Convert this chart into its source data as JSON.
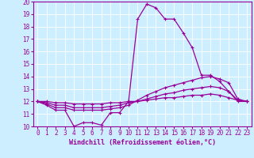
{
  "background_color": "#cceeff",
  "grid_color": "#aaddcc",
  "line_color": "#990099",
  "xlabel": "Windchill (Refroidissement éolien,°C)",
  "ylim": [
    10,
    20
  ],
  "xlim": [
    -0.5,
    23.5
  ],
  "yticks": [
    10,
    11,
    12,
    13,
    14,
    15,
    16,
    17,
    18,
    19,
    20
  ],
  "xticks": [
    0,
    1,
    2,
    3,
    4,
    5,
    6,
    7,
    8,
    9,
    10,
    11,
    12,
    13,
    14,
    15,
    16,
    17,
    18,
    19,
    20,
    21,
    22,
    23
  ],
  "series1_x": [
    0,
    1,
    2,
    3,
    4,
    5,
    6,
    7,
    8,
    9,
    10,
    11,
    12,
    13,
    14,
    15,
    16,
    17,
    18,
    19,
    20,
    21,
    22,
    23
  ],
  "series1_y": [
    12,
    11.7,
    11.3,
    11.3,
    10.0,
    10.3,
    10.3,
    10.1,
    11.1,
    11.1,
    12.0,
    18.6,
    19.8,
    19.5,
    18.6,
    18.6,
    17.5,
    16.3,
    14.1,
    14.1,
    13.6,
    12.8,
    12.0,
    12.0
  ],
  "series2_x": [
    0,
    1,
    2,
    3,
    4,
    5,
    6,
    7,
    8,
    9,
    10,
    11,
    12,
    13,
    14,
    15,
    16,
    17,
    18,
    19,
    20,
    21,
    22,
    23
  ],
  "series2_y": [
    12,
    11.8,
    11.5,
    11.5,
    11.3,
    11.3,
    11.3,
    11.3,
    11.4,
    11.5,
    11.7,
    12.1,
    12.5,
    12.8,
    13.1,
    13.3,
    13.5,
    13.7,
    13.9,
    14.0,
    13.8,
    13.5,
    12.2,
    12.0
  ],
  "series3_x": [
    0,
    1,
    2,
    3,
    4,
    5,
    6,
    7,
    8,
    9,
    10,
    11,
    12,
    13,
    14,
    15,
    16,
    17,
    18,
    19,
    20,
    21,
    22,
    23
  ],
  "series3_y": [
    12,
    11.9,
    11.7,
    11.7,
    11.5,
    11.5,
    11.5,
    11.5,
    11.6,
    11.7,
    11.9,
    12.0,
    12.2,
    12.4,
    12.6,
    12.7,
    12.9,
    13.0,
    13.1,
    13.2,
    13.1,
    12.8,
    12.1,
    12.0
  ],
  "series4_x": [
    0,
    1,
    2,
    3,
    4,
    5,
    6,
    7,
    8,
    9,
    10,
    11,
    12,
    13,
    14,
    15,
    16,
    17,
    18,
    19,
    20,
    21,
    22,
    23
  ],
  "series4_y": [
    12,
    12.0,
    11.9,
    11.9,
    11.8,
    11.8,
    11.8,
    11.8,
    11.9,
    11.9,
    12.0,
    12.0,
    12.1,
    12.2,
    12.3,
    12.3,
    12.4,
    12.5,
    12.5,
    12.6,
    12.5,
    12.3,
    12.1,
    12.0
  ],
  "tick_fontsize": 5.5,
  "xlabel_fontsize": 6.0
}
